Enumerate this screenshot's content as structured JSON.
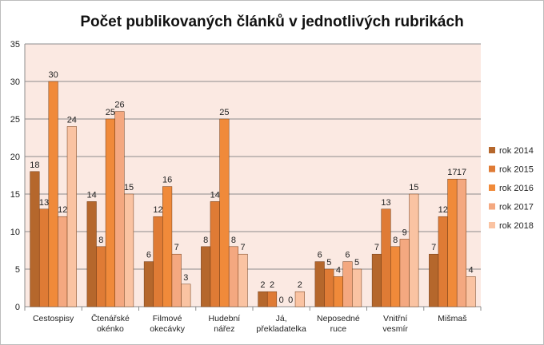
{
  "chart_data": {
    "type": "bar",
    "title": "Počet publikovaných článků v jednotlivých rubrikách",
    "xlabel": "",
    "ylabel": "",
    "ylim": [
      0,
      35
    ],
    "yticks": [
      0,
      5,
      10,
      15,
      20,
      25,
      30,
      35
    ],
    "grid": true,
    "legend_position": "right",
    "plot_background": "#fbe9e2",
    "categories": [
      [
        "Cestospisy"
      ],
      [
        "Čtenářské",
        "okénko"
      ],
      [
        "Filmové",
        "okecávky"
      ],
      [
        "Hudební",
        "nářez"
      ],
      [
        "Já,",
        "překladatelka"
      ],
      [
        "Neposedné",
        "ruce"
      ],
      [
        "Vnitřní",
        "vesmír"
      ],
      [
        "Mišmaš"
      ]
    ],
    "series": [
      {
        "name": "rok 2014",
        "color": "#b5672c",
        "values": [
          18,
          14,
          6,
          8,
          2,
          6,
          7,
          7
        ]
      },
      {
        "name": "rok 2015",
        "color": "#df7b35",
        "values": [
          13,
          8,
          12,
          14,
          2,
          5,
          13,
          12
        ]
      },
      {
        "name": "rok 2016",
        "color": "#f08a3a",
        "values": [
          30,
          25,
          16,
          25,
          0,
          4,
          8,
          17
        ]
      },
      {
        "name": "rok 2017",
        "color": "#f4a880",
        "values": [
          12,
          26,
          7,
          8,
          0,
          6,
          9,
          17
        ]
      },
      {
        "name": "rok 2018",
        "color": "#fac3a2",
        "values": [
          24,
          15,
          3,
          7,
          2,
          5,
          15,
          4
        ]
      }
    ]
  }
}
